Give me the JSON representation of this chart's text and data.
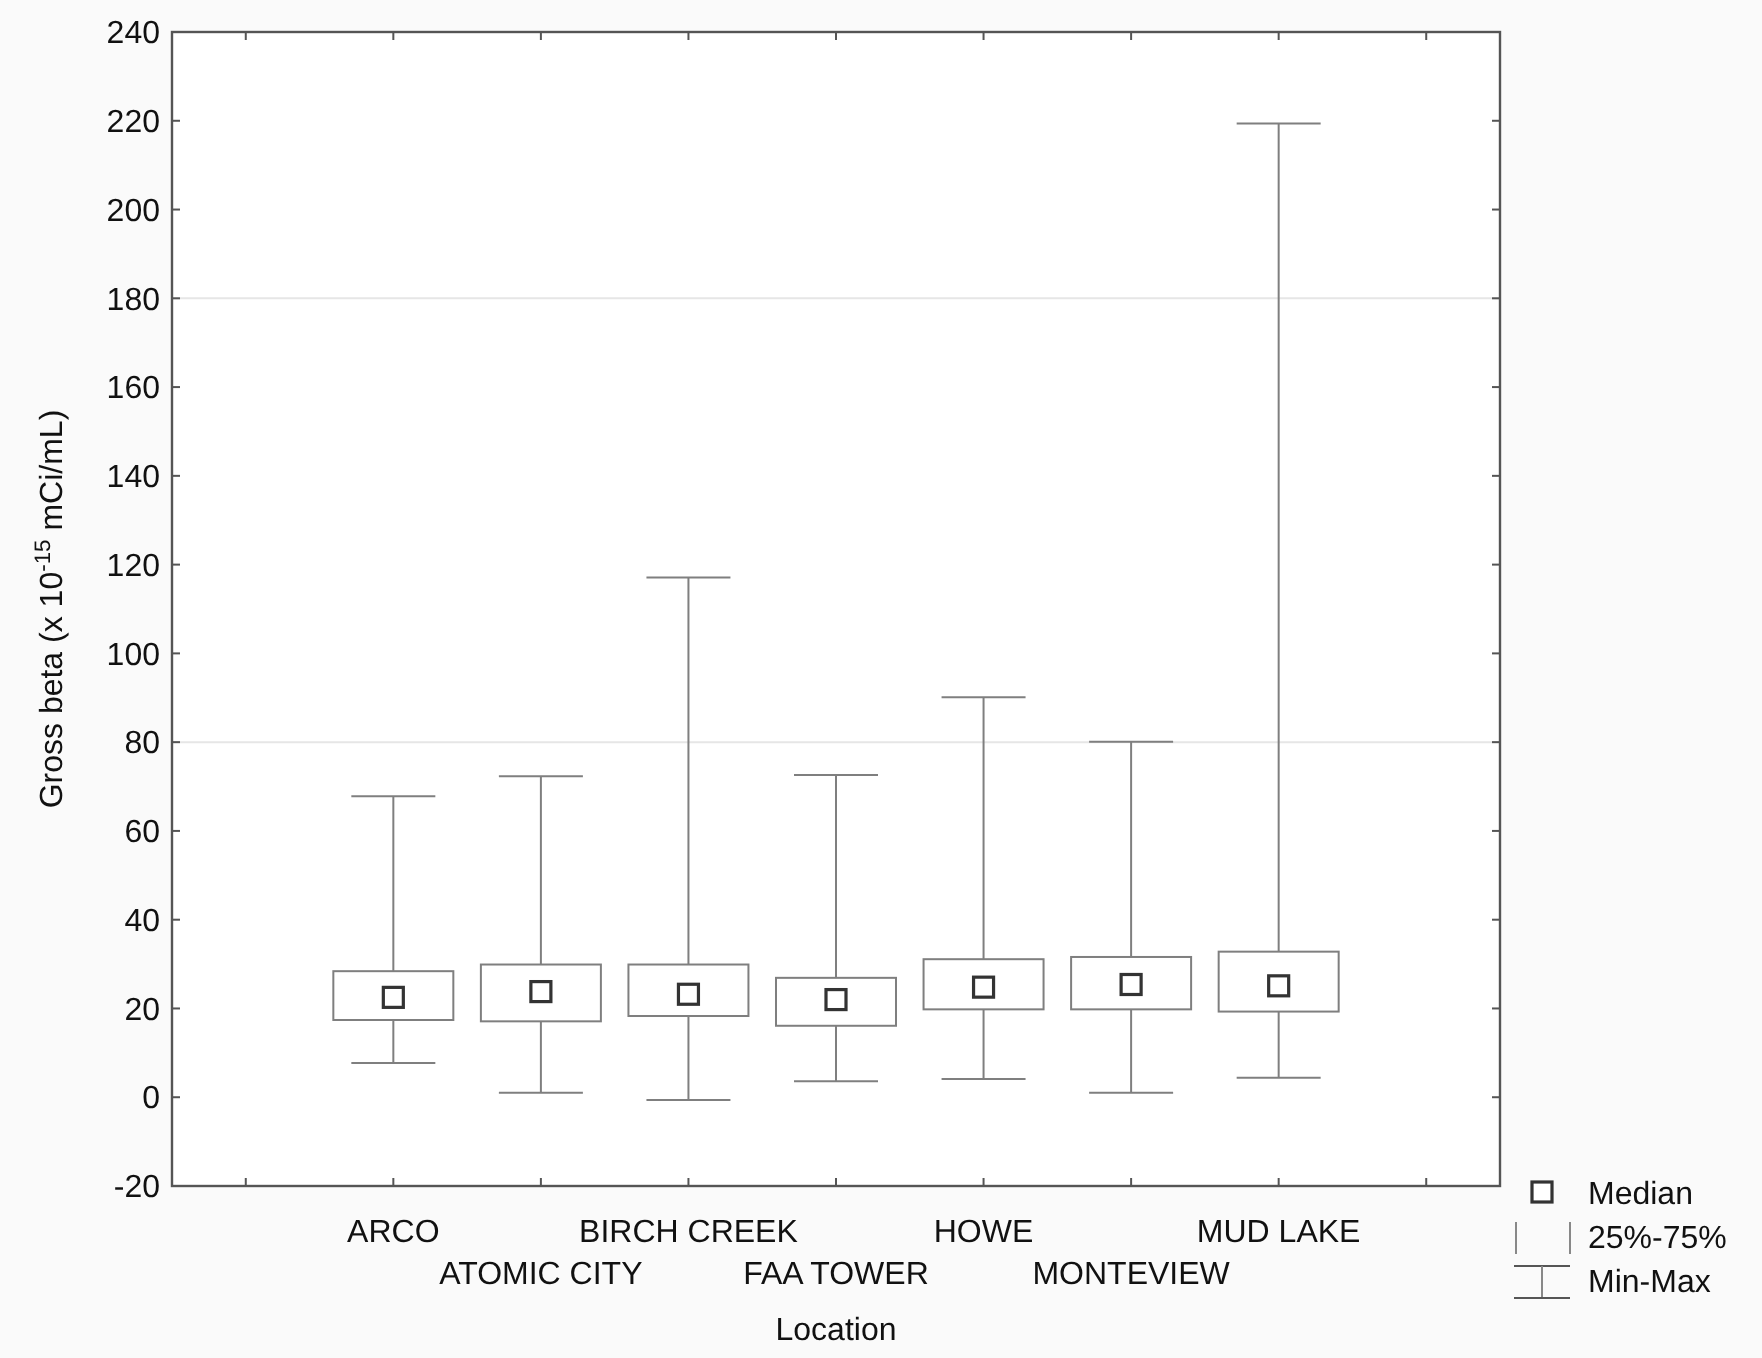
{
  "chart_data": {
    "type": "box",
    "xlabel": "Location",
    "ylabel": "Gross beta (x 10$^{-15}$ mCi/mL)",
    "categories": [
      "ARCO",
      "ATOMIC CITY",
      "BIRCH CREEK",
      "FAA TOWER",
      "HOWE",
      "MONTEVIEW",
      "MUD LAKE"
    ],
    "series": [
      {
        "color": "#7f7f7f",
        "boxes": [
          {
            "low": 7.7,
            "q1": 17.4,
            "median": 22.5,
            "q3": 28.4,
            "high": 67.8
          },
          {
            "low": 1.0,
            "q1": 17.1,
            "median": 23.8,
            "q3": 29.9,
            "high": 72.3
          },
          {
            "low": -0.6,
            "q1": 18.3,
            "median": 23.2,
            "q3": 29.9,
            "high": 117.1
          },
          {
            "low": 3.6,
            "q1": 16.1,
            "median": 22.0,
            "q3": 26.9,
            "high": 72.6
          },
          {
            "low": 4.1,
            "q1": 19.8,
            "median": 24.8,
            "q3": 31.1,
            "high": 90.1
          },
          {
            "low": 1.0,
            "q1": 19.8,
            "median": 25.4,
            "q3": 31.6,
            "high": 80.1
          },
          {
            "low": 4.4,
            "q1": 19.3,
            "median": 25.1,
            "q3": 32.8,
            "high": 219.4
          }
        ]
      }
    ],
    "ylim": [
      -20,
      240
    ],
    "yticks": [
      -20,
      0,
      20,
      40,
      60,
      80,
      100,
      120,
      140,
      160,
      180,
      200,
      220,
      240
    ],
    "ref_lines": [
      {
        "axis": "y",
        "value": 80,
        "color": "#e6e6e6"
      },
      {
        "axis": "y",
        "value": 180,
        "color": "#e6e6e6"
      }
    ],
    "marker": "square",
    "annotations": [
      "Median",
      "25%-75%",
      "Min-Max"
    ]
  }
}
